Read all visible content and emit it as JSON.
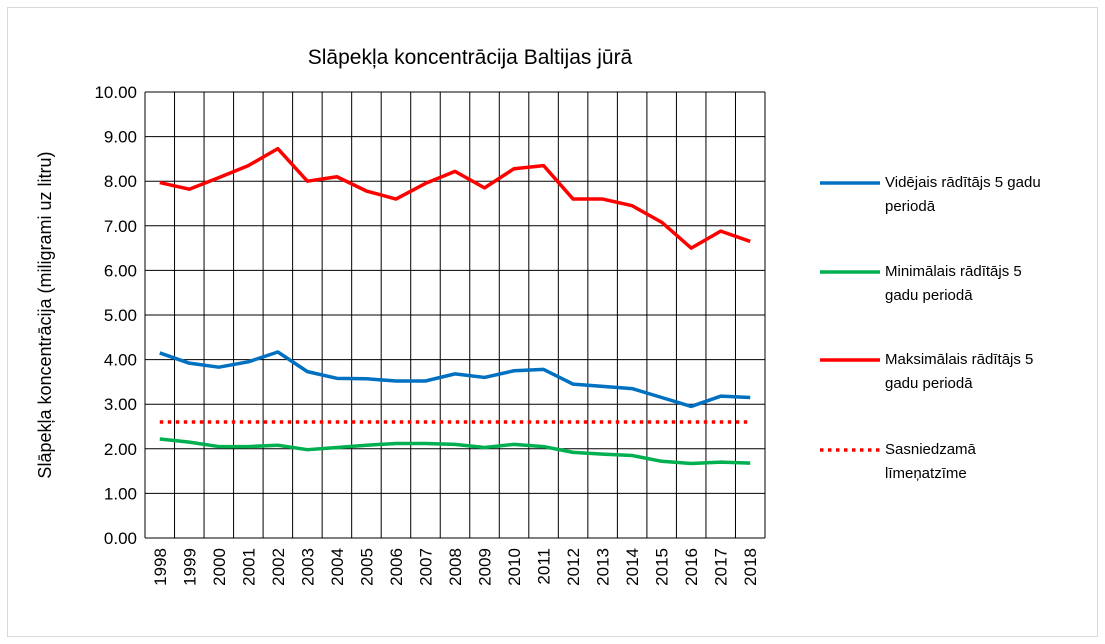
{
  "chart_data": {
    "type": "line",
    "title": "Slāpekļa koncentrācija Baltijas jūrā",
    "y_label": "Slāpekļa koncentrācija (miligrami uz litru)",
    "categories": [
      "1998",
      "1999",
      "2000",
      "2001",
      "2002",
      "2003",
      "2004",
      "2005",
      "2006",
      "2007",
      "2008",
      "2009",
      "2010",
      "2011",
      "2012",
      "2013",
      "2014",
      "2015",
      "2016",
      "2017",
      "2018"
    ],
    "series": [
      {
        "name": "Vidējais rādītājs 5 gadu periodā",
        "color": "#0070c0",
        "style": "solid",
        "values": [
          4.15,
          3.92,
          3.83,
          3.95,
          4.17,
          3.73,
          3.58,
          3.57,
          3.52,
          3.52,
          3.68,
          3.6,
          3.75,
          3.78,
          3.45,
          3.4,
          3.35,
          3.15,
          2.95,
          3.18,
          3.15
        ]
      },
      {
        "name": "Minimālais rādītājs 5 gadu periodā",
        "color": "#00b050",
        "style": "solid",
        "values": [
          2.22,
          2.15,
          2.05,
          2.05,
          2.08,
          1.98,
          2.03,
          2.08,
          2.12,
          2.12,
          2.1,
          2.03,
          2.1,
          2.05,
          1.92,
          1.88,
          1.85,
          1.72,
          1.67,
          1.7,
          1.68
        ]
      },
      {
        "name": "Maksimālais rādītājs 5 gadu periodā",
        "color": "#ff0000",
        "style": "solid",
        "values": [
          7.97,
          7.82,
          8.08,
          8.35,
          8.73,
          8.0,
          8.1,
          7.78,
          7.6,
          7.95,
          8.22,
          7.85,
          8.28,
          8.35,
          7.6,
          7.6,
          7.45,
          7.08,
          6.5,
          6.88,
          6.65
        ]
      },
      {
        "name": "Sasniedzamā līmeņatzīme",
        "color": "#ff0000",
        "style": "dotted",
        "values": [
          2.6,
          2.6,
          2.6,
          2.6,
          2.6,
          2.6,
          2.6,
          2.6,
          2.6,
          2.6,
          2.6,
          2.6,
          2.6,
          2.6,
          2.6,
          2.6,
          2.6,
          2.6,
          2.6,
          2.6,
          2.6
        ]
      }
    ],
    "ylim": [
      0,
      10
    ],
    "yticks": [
      {
        "value": 0,
        "label": "0.00"
      },
      {
        "value": 1,
        "label": "1.00"
      },
      {
        "value": 2,
        "label": "2.00"
      },
      {
        "value": 3,
        "label": "3.00"
      },
      {
        "value": 4,
        "label": "4.00"
      },
      {
        "value": 5,
        "label": "5.00"
      },
      {
        "value": 6,
        "label": "6.00"
      },
      {
        "value": 7,
        "label": "7.00"
      },
      {
        "value": 8,
        "label": "8.00"
      },
      {
        "value": 9,
        "label": "9.00"
      },
      {
        "value": 10,
        "label": "10.00"
      }
    ],
    "grid": true,
    "legend": "right"
  }
}
